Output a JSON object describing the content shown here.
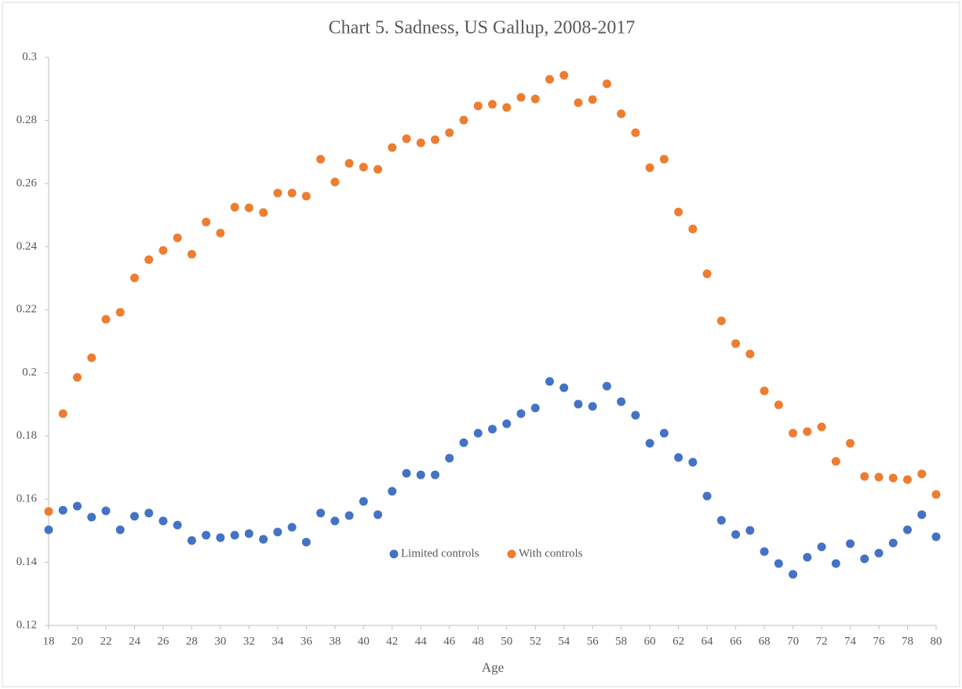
{
  "chart_data": {
    "type": "scatter",
    "title": "Chart 5. Sadness, US Gallup, 2008-2017",
    "x_label": "Age",
    "x": [
      18,
      19,
      20,
      21,
      22,
      23,
      24,
      25,
      26,
      27,
      28,
      29,
      30,
      31,
      32,
      33,
      34,
      35,
      36,
      37,
      38,
      39,
      40,
      41,
      42,
      43,
      44,
      45,
      46,
      47,
      48,
      49,
      50,
      51,
      52,
      53,
      54,
      55,
      56,
      57,
      58,
      59,
      60,
      61,
      62,
      63,
      64,
      65,
      66,
      67,
      68,
      69,
      70,
      71,
      72,
      73,
      74,
      75,
      76,
      77,
      78,
      79,
      80
    ],
    "series": [
      {
        "name": "Limited controls",
        "color": "#4472c4",
        "values": [
          0.1503,
          0.1565,
          0.1578,
          0.1543,
          0.1563,
          0.1503,
          0.1546,
          0.1556,
          0.1531,
          0.1518,
          0.1469,
          0.1486,
          0.1478,
          0.1486,
          0.1491,
          0.1473,
          0.1496,
          0.1511,
          0.1464,
          0.1556,
          0.1531,
          0.1548,
          0.1593,
          0.1551,
          0.1625,
          0.1682,
          0.1677,
          0.1677,
          0.173,
          0.1779,
          0.1809,
          0.1822,
          0.1839,
          0.1871,
          0.1889,
          0.1973,
          0.1953,
          0.1901,
          0.1894,
          0.1958,
          0.1909,
          0.1866,
          0.1777,
          0.1809,
          0.1732,
          0.1717,
          0.161,
          0.1533,
          0.1488,
          0.1501,
          0.1434,
          0.1396,
          0.1362,
          0.1416,
          0.1449,
          0.1396,
          0.1459,
          0.1411,
          0.1429,
          0.1461,
          0.1503,
          0.1551,
          0.1481
        ]
      },
      {
        "name": "With controls",
        "color": "#ed7d31",
        "values": [
          0.1561,
          0.1871,
          0.1986,
          0.2048,
          0.217,
          0.2192,
          0.2301,
          0.2359,
          0.2388,
          0.2428,
          0.2376,
          0.2478,
          0.2443,
          0.2525,
          0.2523,
          0.2508,
          0.257,
          0.257,
          0.256,
          0.2677,
          0.2605,
          0.2664,
          0.2652,
          0.2645,
          0.2714,
          0.2742,
          0.2729,
          0.2739,
          0.2761,
          0.2801,
          0.2846,
          0.2851,
          0.2841,
          0.2873,
          0.2868,
          0.293,
          0.2943,
          0.2856,
          0.2866,
          0.2916,
          0.2821,
          0.2761,
          0.265,
          0.2677,
          0.251,
          0.2456,
          0.2314,
          0.2165,
          0.2093,
          0.206,
          0.1943,
          0.1899,
          0.1809,
          0.1814,
          0.1829,
          0.172,
          0.1777,
          0.1672,
          0.167,
          0.1667,
          0.1662,
          0.168,
          0.1615
        ]
      }
    ],
    "xlim": [
      18,
      80
    ],
    "xticks": [
      18,
      20,
      22,
      24,
      26,
      28,
      30,
      32,
      34,
      36,
      38,
      40,
      42,
      44,
      46,
      48,
      50,
      52,
      54,
      56,
      58,
      60,
      62,
      64,
      66,
      68,
      70,
      72,
      74,
      76,
      78,
      80
    ],
    "ylim": [
      0.12,
      0.3
    ],
    "yticks": [
      0.12,
      0.14,
      0.16,
      0.18,
      0.2,
      0.22,
      0.24,
      0.26,
      0.28,
      0.3
    ],
    "grid": false,
    "legend": "bottom"
  }
}
